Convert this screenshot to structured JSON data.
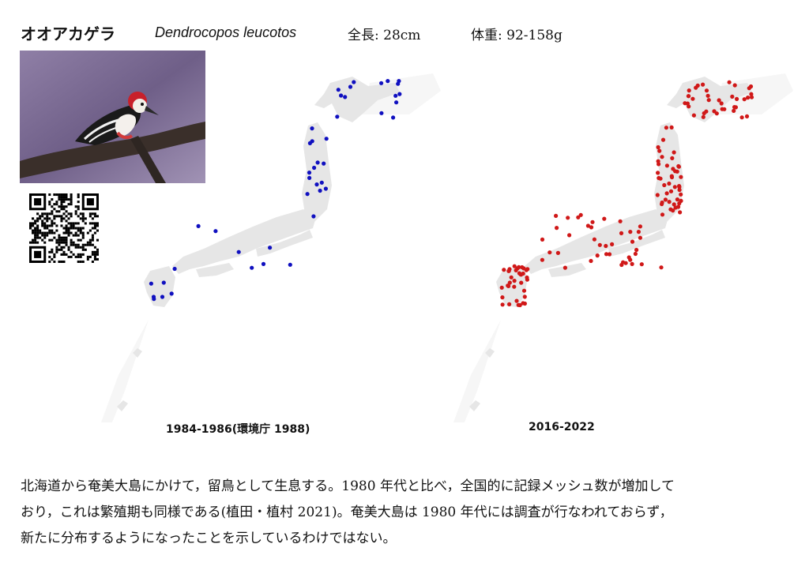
{
  "species": {
    "japanese_name": "オオアカゲラ",
    "scientific_name": "Dendrocopos leucotos",
    "length_text": "全長: 28cm",
    "weight_text": "体重: 92-158g"
  },
  "maps": [
    {
      "caption": "1984-1986(環境庁 1988)",
      "dot_color": "#1010c0",
      "dot_count": 44
    },
    {
      "caption": "2016-2022",
      "dot_color": "#d01818",
      "dot_count": 160
    }
  ],
  "description_lines": [
    "北海道から奄美大島にかけて，留鳥として生息する。1980 年代と比べ，全国的に記録メッシュ数が増加して",
    "おり，これは繁殖期も同様である(植田・植村 2021)。奄美大島は 1980 年代には調査が行なわれておらず，",
    "新たに分布するようになったことを示しているわけではない。"
  ],
  "colors": {
    "land": "#e6e6e6",
    "background": "#ffffff"
  }
}
